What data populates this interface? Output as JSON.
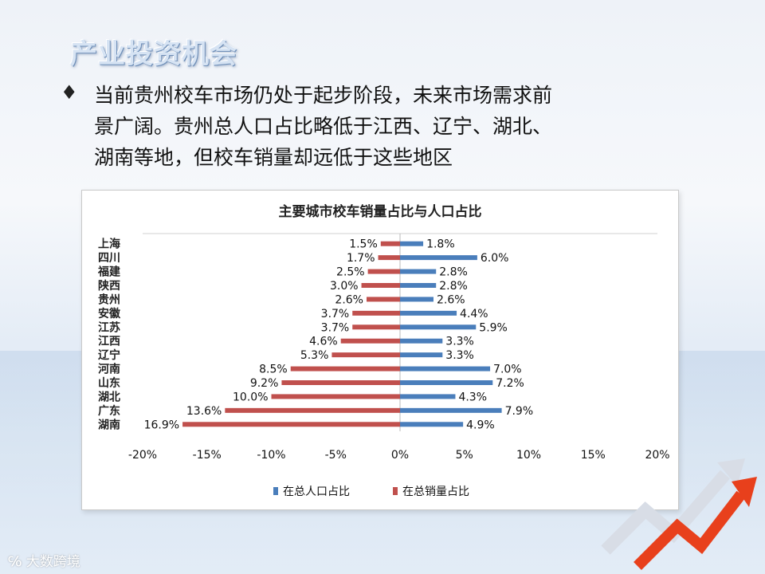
{
  "slide": {
    "title": "产业投资机会",
    "bullet_icon": "diamond-bullet-icon",
    "bullet_lines": [
      "当前贵州校车市场仍处于起步阶段，未来市场需求前",
      "景广阔。贵州总人口占比略低于江西、辽宁、湖北、",
      "湖南等地，但校车销量却远低于这些地区"
    ],
    "watermark": "大数跨境"
  },
  "chart_data": {
    "type": "bar",
    "orientation": "horizontal-butterfly",
    "title": "主要城市校车销量占比与人口占比",
    "categories": [
      "上海",
      "四川",
      "福建",
      "陕西",
      "贵州",
      "安徽",
      "江苏",
      "江西",
      "辽宁",
      "河南",
      "山东",
      "湖北",
      "广东",
      "湖南"
    ],
    "series": [
      {
        "name": "在总人口占比",
        "color": "#4a7ebb",
        "values": [
          1.8,
          6.0,
          2.8,
          2.8,
          2.6,
          4.4,
          5.9,
          3.3,
          3.3,
          7.0,
          7.2,
          4.3,
          7.9,
          4.9
        ],
        "labels": [
          "1.8%",
          "6.0%",
          "2.8%",
          "2.8%",
          "2.6%",
          "4.4%",
          "5.9%",
          "3.3%",
          "3.3%",
          "7.0%",
          "7.2%",
          "4.3%",
          "7.9%",
          "4.9%"
        ]
      },
      {
        "name": "在总销量占比",
        "color": "#c0504d",
        "values": [
          -1.5,
          -1.7,
          -2.5,
          -3.0,
          -2.6,
          -3.7,
          -3.7,
          -4.6,
          -5.3,
          -8.5,
          -9.2,
          -10.0,
          -13.6,
          -16.9
        ],
        "labels": [
          "1.5%",
          "1.7%",
          "2.5%",
          "3.0%",
          "2.6%",
          "3.7%",
          "3.7%",
          "4.6%",
          "5.3%",
          "8.5%",
          "9.2%",
          "10.0%",
          "13.6%",
          "16.9%"
        ]
      }
    ],
    "xlim": [
      -20,
      20
    ],
    "xticks": [
      "-20%",
      "-15%",
      "-10%",
      "-5%",
      "0%",
      "5%",
      "10%",
      "15%",
      "20%"
    ],
    "legend": "bottom",
    "grid": false
  }
}
